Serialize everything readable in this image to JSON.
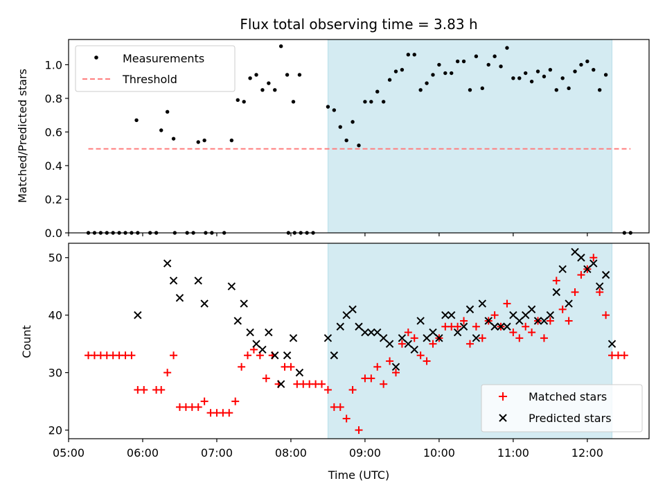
{
  "figure": {
    "title": "Flux total observing time = 3.83 h",
    "xlabel": "Time (UTC)"
  },
  "chart_data": [
    {
      "type": "scatter",
      "panel": "top",
      "ylabel": "Matched/Predicted stars",
      "xlim": [
        "05:00",
        "12:50"
      ],
      "ylim": [
        0,
        1.15
      ],
      "yticks": [
        "0.0",
        "0.2",
        "0.4",
        "0.6",
        "0.8",
        "1.0"
      ],
      "grid": false,
      "legend_placement": "top-left",
      "shaded_interval": {
        "start": "08:30",
        "end": "12:20",
        "color": "#add8e6"
      },
      "series": [
        {
          "name": "Measurements",
          "marker": "dot",
          "color": "#000000",
          "points": [
            [
              "05:16",
              0
            ],
            [
              "05:21",
              0
            ],
            [
              "05:26",
              0
            ],
            [
              "05:31",
              0
            ],
            [
              "05:36",
              0
            ],
            [
              "05:41",
              0
            ],
            [
              "05:46",
              0
            ],
            [
              "05:51",
              0
            ],
            [
              "05:56",
              0
            ],
            [
              "06:06",
              0
            ],
            [
              "06:11",
              0
            ],
            [
              "06:26",
              0
            ],
            [
              "06:36",
              0
            ],
            [
              "06:41",
              0
            ],
            [
              "06:51",
              0
            ],
            [
              "06:56",
              0
            ],
            [
              "07:06",
              0
            ],
            [
              "07:58",
              0
            ],
            [
              "08:03",
              0
            ],
            [
              "08:08",
              0
            ],
            [
              "08:13",
              0
            ],
            [
              "08:18",
              0
            ],
            [
              "12:30",
              0
            ],
            [
              "12:35",
              0
            ],
            [
              "05:55",
              0.67
            ],
            [
              "06:15",
              0.61
            ],
            [
              "06:20",
              0.72
            ],
            [
              "06:25",
              0.56
            ],
            [
              "06:45",
              0.54
            ],
            [
              "06:50",
              0.55
            ],
            [
              "07:12",
              0.55
            ],
            [
              "07:17",
              0.79
            ],
            [
              "07:22",
              0.78
            ],
            [
              "07:27",
              0.92
            ],
            [
              "07:32",
              0.94
            ],
            [
              "07:37",
              0.85
            ],
            [
              "07:42",
              0.89
            ],
            [
              "07:47",
              0.85
            ],
            [
              "07:52",
              1.11
            ],
            [
              "07:57",
              0.94
            ],
            [
              "08:02",
              0.78
            ],
            [
              "08:07",
              0.94
            ],
            [
              "08:30",
              0.75
            ],
            [
              "08:35",
              0.73
            ],
            [
              "08:40",
              0.63
            ],
            [
              "08:45",
              0.55
            ],
            [
              "08:50",
              0.66
            ],
            [
              "08:55",
              0.52
            ],
            [
              "09:00",
              0.78
            ],
            [
              "09:05",
              0.78
            ],
            [
              "09:10",
              0.84
            ],
            [
              "09:15",
              0.78
            ],
            [
              "09:20",
              0.91
            ],
            [
              "09:25",
              0.96
            ],
            [
              "09:30",
              0.97
            ],
            [
              "09:35",
              1.06
            ],
            [
              "09:40",
              1.06
            ],
            [
              "09:45",
              0.85
            ],
            [
              "09:50",
              0.89
            ],
            [
              "09:55",
              0.94
            ],
            [
              "10:00",
              1.0
            ],
            [
              "10:05",
              0.95
            ],
            [
              "10:10",
              0.95
            ],
            [
              "10:15",
              1.02
            ],
            [
              "10:20",
              1.02
            ],
            [
              "10:25",
              0.85
            ],
            [
              "10:30",
              1.05
            ],
            [
              "10:35",
              0.86
            ],
            [
              "10:40",
              1.0
            ],
            [
              "10:45",
              1.05
            ],
            [
              "10:50",
              0.99
            ],
            [
              "10:55",
              1.1
            ],
            [
              "11:00",
              0.92
            ],
            [
              "11:05",
              0.92
            ],
            [
              "11:10",
              0.95
            ],
            [
              "11:15",
              0.9
            ],
            [
              "11:20",
              0.96
            ],
            [
              "11:25",
              0.93
            ],
            [
              "11:30",
              0.97
            ],
            [
              "11:35",
              0.85
            ],
            [
              "11:40",
              0.92
            ],
            [
              "11:45",
              0.86
            ],
            [
              "11:50",
              0.96
            ],
            [
              "11:55",
              1.0
            ],
            [
              "12:00",
              1.02
            ],
            [
              "12:05",
              0.97
            ],
            [
              "12:10",
              0.85
            ],
            [
              "12:15",
              0.94
            ]
          ]
        },
        {
          "name": "Threshold",
          "marker": "dashed-line",
          "color": "#ff7f7f",
          "points": [
            [
              "05:16",
              0.5
            ],
            [
              "12:35",
              0.5
            ]
          ]
        }
      ]
    },
    {
      "type": "scatter",
      "panel": "bottom",
      "ylabel": "Count",
      "xlim": [
        "05:00",
        "12:50"
      ],
      "ylim": [
        18.5,
        52.5
      ],
      "yticks": [
        "20",
        "30",
        "40",
        "50"
      ],
      "xticks": [
        "05:00",
        "06:00",
        "07:00",
        "08:00",
        "09:00",
        "10:00",
        "11:00",
        "12:00"
      ],
      "grid": false,
      "legend_placement": "bottom-right",
      "shaded_interval": {
        "start": "08:30",
        "end": "12:20",
        "color": "#add8e6"
      },
      "series": [
        {
          "name": "Matched stars",
          "marker": "plus",
          "color": "#ff0000",
          "points": [
            [
              "05:16",
              33
            ],
            [
              "05:21",
              33
            ],
            [
              "05:26",
              33
            ],
            [
              "05:31",
              33
            ],
            [
              "05:36",
              33
            ],
            [
              "05:41",
              33
            ],
            [
              "05:46",
              33
            ],
            [
              "05:51",
              33
            ],
            [
              "05:56",
              27
            ],
            [
              "06:01",
              27
            ],
            [
              "06:11",
              27
            ],
            [
              "06:15",
              27
            ],
            [
              "06:20",
              30
            ],
            [
              "06:25",
              33
            ],
            [
              "06:30",
              24
            ],
            [
              "06:35",
              24
            ],
            [
              "06:40",
              24
            ],
            [
              "06:45",
              24
            ],
            [
              "06:50",
              25
            ],
            [
              "06:55",
              23
            ],
            [
              "07:00",
              23
            ],
            [
              "07:05",
              23
            ],
            [
              "07:10",
              23
            ],
            [
              "07:15",
              25
            ],
            [
              "07:20",
              31
            ],
            [
              "07:25",
              33
            ],
            [
              "07:30",
              34
            ],
            [
              "07:35",
              33
            ],
            [
              "07:40",
              29
            ],
            [
              "07:45",
              33
            ],
            [
              "07:50",
              28
            ],
            [
              "07:55",
              31
            ],
            [
              "08:00",
              31
            ],
            [
              "08:05",
              28
            ],
            [
              "08:10",
              28
            ],
            [
              "08:15",
              28
            ],
            [
              "08:20",
              28
            ],
            [
              "08:25",
              28
            ],
            [
              "08:30",
              27
            ],
            [
              "08:35",
              24
            ],
            [
              "08:40",
              24
            ],
            [
              "08:45",
              22
            ],
            [
              "08:50",
              27
            ],
            [
              "08:55",
              20
            ],
            [
              "09:00",
              29
            ],
            [
              "09:05",
              29
            ],
            [
              "09:10",
              31
            ],
            [
              "09:15",
              28
            ],
            [
              "09:20",
              32
            ],
            [
              "09:25",
              30
            ],
            [
              "09:30",
              35
            ],
            [
              "09:35",
              37
            ],
            [
              "09:40",
              36
            ],
            [
              "09:45",
              33
            ],
            [
              "09:50",
              32
            ],
            [
              "09:55",
              35
            ],
            [
              "10:00",
              36
            ],
            [
              "10:05",
              38
            ],
            [
              "10:10",
              38
            ],
            [
              "10:15",
              38
            ],
            [
              "10:20",
              39
            ],
            [
              "10:25",
              35
            ],
            [
              "10:30",
              38
            ],
            [
              "10:35",
              36
            ],
            [
              "10:40",
              39
            ],
            [
              "10:45",
              40
            ],
            [
              "10:50",
              38
            ],
            [
              "10:55",
              42
            ],
            [
              "11:00",
              37
            ],
            [
              "11:05",
              36
            ],
            [
              "11:10",
              38
            ],
            [
              "11:15",
              37
            ],
            [
              "11:20",
              39
            ],
            [
              "11:25",
              36
            ],
            [
              "11:30",
              39
            ],
            [
              "11:35",
              46
            ],
            [
              "11:40",
              41
            ],
            [
              "11:45",
              39
            ],
            [
              "11:50",
              44
            ],
            [
              "11:55",
              47
            ],
            [
              "12:00",
              48
            ],
            [
              "12:05",
              50
            ],
            [
              "12:10",
              44
            ],
            [
              "12:15",
              40
            ],
            [
              "12:20",
              33
            ],
            [
              "12:25",
              33
            ],
            [
              "12:30",
              33
            ]
          ]
        },
        {
          "name": "Predicted stars",
          "marker": "x",
          "color": "#000000",
          "points": [
            [
              "05:56",
              40
            ],
            [
              "06:20",
              49
            ],
            [
              "06:25",
              46
            ],
            [
              "06:30",
              43
            ],
            [
              "06:45",
              46
            ],
            [
              "06:50",
              42
            ],
            [
              "07:12",
              45
            ],
            [
              "07:17",
              39
            ],
            [
              "07:22",
              42
            ],
            [
              "07:27",
              37
            ],
            [
              "07:32",
              35
            ],
            [
              "07:37",
              34
            ],
            [
              "07:42",
              37
            ],
            [
              "07:47",
              33
            ],
            [
              "07:52",
              28
            ],
            [
              "07:57",
              33
            ],
            [
              "08:02",
              36
            ],
            [
              "08:07",
              30
            ],
            [
              "08:30",
              36
            ],
            [
              "08:35",
              33
            ],
            [
              "08:40",
              38
            ],
            [
              "08:45",
              40
            ],
            [
              "08:50",
              41
            ],
            [
              "08:55",
              38
            ],
            [
              "09:00",
              37
            ],
            [
              "09:05",
              37
            ],
            [
              "09:10",
              37
            ],
            [
              "09:15",
              36
            ],
            [
              "09:20",
              35
            ],
            [
              "09:25",
              31
            ],
            [
              "09:30",
              36
            ],
            [
              "09:35",
              35
            ],
            [
              "09:40",
              34
            ],
            [
              "09:45",
              39
            ],
            [
              "09:50",
              36
            ],
            [
              "09:55",
              37
            ],
            [
              "10:00",
              36
            ],
            [
              "10:05",
              40
            ],
            [
              "10:10",
              40
            ],
            [
              "10:15",
              37
            ],
            [
              "10:20",
              38
            ],
            [
              "10:25",
              41
            ],
            [
              "10:30",
              36
            ],
            [
              "10:35",
              42
            ],
            [
              "10:40",
              39
            ],
            [
              "10:45",
              38
            ],
            [
              "10:50",
              38
            ],
            [
              "10:55",
              38
            ],
            [
              "11:00",
              40
            ],
            [
              "11:05",
              39
            ],
            [
              "11:10",
              40
            ],
            [
              "11:15",
              41
            ],
            [
              "11:20",
              39
            ],
            [
              "11:25",
              39
            ],
            [
              "11:30",
              40
            ],
            [
              "11:35",
              44
            ],
            [
              "11:40",
              48
            ],
            [
              "11:45",
              42
            ],
            [
              "11:50",
              51
            ],
            [
              "11:55",
              50
            ],
            [
              "12:00",
              48
            ],
            [
              "12:05",
              49
            ],
            [
              "12:10",
              45
            ],
            [
              "12:15",
              47
            ],
            [
              "12:20",
              35
            ]
          ]
        }
      ]
    }
  ]
}
